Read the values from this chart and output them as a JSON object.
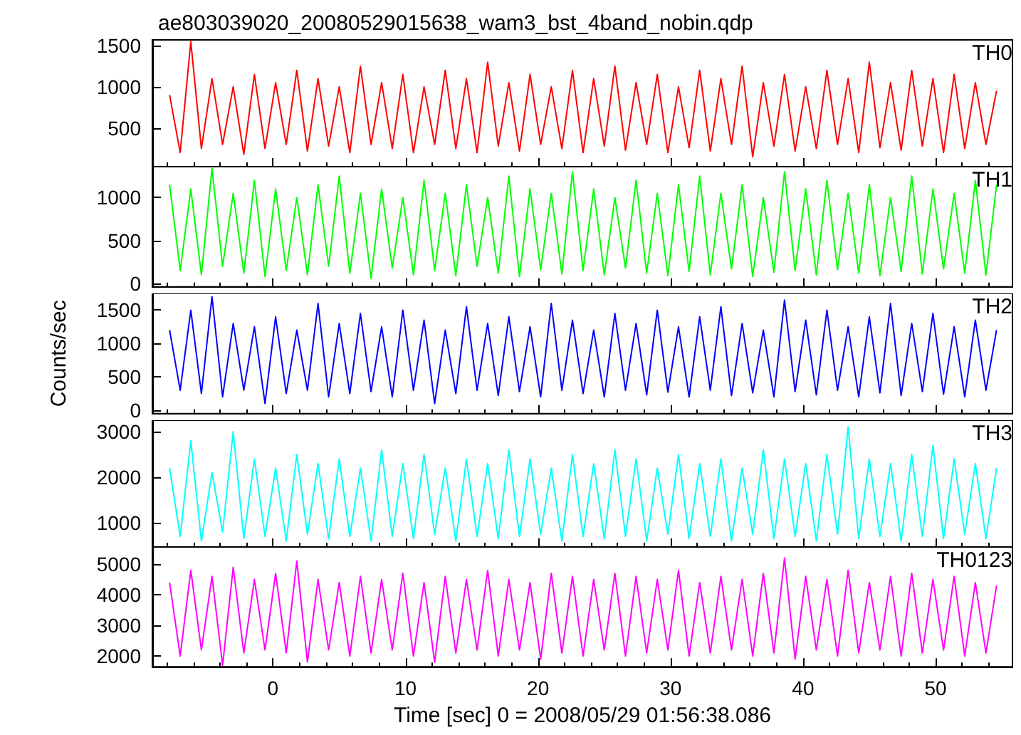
{
  "chart_data": [
    {
      "type": "line",
      "title": "ae803039020_20080529015638_wam3_bst_4band_nobin.qdp",
      "marker": "none",
      "grid": false,
      "legend": "top right",
      "tick_labels": "y",
      "xlim": [
        -9.1,
        55.8
      ],
      "xticks": [
        0,
        10,
        20,
        30,
        40,
        50
      ],
      "ylim": [
        30,
        1570
      ],
      "yticks": [
        500,
        1000,
        1500
      ],
      "x": [
        -7.8,
        -7,
        -6.2,
        -5.4,
        -4.6,
        -3.8,
        -3,
        -2.2,
        -1.4,
        -0.6,
        0.2,
        1,
        1.8,
        2.6,
        3.4,
        4.2,
        5,
        5.8,
        6.6,
        7.4,
        8.2,
        9,
        9.8,
        10.6,
        11.4,
        12.2,
        13,
        13.8,
        14.6,
        15.4,
        16.2,
        17,
        17.8,
        18.6,
        19.4,
        20.2,
        21,
        21.8,
        22.6,
        23.4,
        24.2,
        25,
        25.8,
        26.6,
        27.4,
        28.2,
        29,
        29.8,
        30.6,
        31.4,
        32.2,
        33,
        33.8,
        34.6,
        35.4,
        36.2,
        37,
        37.8,
        38.6,
        39.4,
        40.2,
        41,
        41.8,
        42.6,
        43.4,
        44.2,
        45,
        45.8,
        46.6,
        47.4,
        48.2,
        49,
        49.8,
        50.6,
        51.4,
        52.2,
        53,
        53.8,
        54.6
      ],
      "series": [
        {
          "name": "TH0",
          "color": "#ff0000",
          "values": [
            900,
            200,
            1550,
            250,
            1100,
            300,
            1000,
            180,
            1150,
            250,
            1050,
            300,
            1200,
            220,
            1100,
            280,
            1000,
            200,
            1250,
            300,
            1050,
            250,
            1150,
            200,
            1000,
            300,
            1200,
            250,
            1100,
            200,
            1300,
            280,
            1050,
            220,
            1150,
            300,
            1000,
            250,
            1200,
            200,
            1100,
            280,
            1250,
            230,
            1050,
            300,
            1150,
            200,
            1000,
            260,
            1200,
            220,
            1100,
            300,
            1250,
            150,
            1050,
            280,
            1150,
            220,
            1000,
            250,
            1200,
            300,
            1100,
            200,
            1300,
            260,
            1050,
            230,
            1200,
            280,
            1100,
            200,
            1150,
            250,
            1050,
            300,
            950
          ]
        }
      ]
    },
    {
      "type": "line",
      "marker": "none",
      "grid": false,
      "legend": "top right",
      "tick_labels": "y",
      "xlim": [
        -9.1,
        55.8
      ],
      "xticks": [
        0,
        10,
        20,
        30,
        40,
        50
      ],
      "ylim": [
        -40,
        1360
      ],
      "yticks": [
        0,
        500,
        1000
      ],
      "x": [
        -7.8,
        -7,
        -6.2,
        -5.4,
        -4.6,
        -3.8,
        -3,
        -2.2,
        -1.4,
        -0.6,
        0.2,
        1,
        1.8,
        2.6,
        3.4,
        4.2,
        5,
        5.8,
        6.6,
        7.4,
        8.2,
        9,
        9.8,
        10.6,
        11.4,
        12.2,
        13,
        13.8,
        14.6,
        15.4,
        16.2,
        17,
        17.8,
        18.6,
        19.4,
        20.2,
        21,
        21.8,
        22.6,
        23.4,
        24.2,
        25,
        25.8,
        26.6,
        27.4,
        28.2,
        29,
        29.8,
        30.6,
        31.4,
        32.2,
        33,
        33.8,
        34.6,
        35.4,
        36.2,
        37,
        37.8,
        38.6,
        39.4,
        40.2,
        41,
        41.8,
        42.6,
        43.4,
        44.2,
        45,
        45.8,
        46.6,
        47.4,
        48.2,
        49,
        49.8,
        50.6,
        51.4,
        52.2,
        53,
        53.8,
        54.6
      ],
      "series": [
        {
          "name": "TH1",
          "color": "#00ff00",
          "values": [
            1150,
            150,
            1100,
            100,
            1340,
            200,
            1050,
            120,
            1200,
            80,
            1100,
            150,
            1000,
            100,
            1150,
            200,
            1250,
            120,
            1050,
            60,
            1100,
            180,
            1000,
            100,
            1200,
            150,
            1050,
            90,
            1150,
            200,
            1000,
            120,
            1250,
            80,
            1100,
            160,
            1050,
            110,
            1300,
            150,
            1100,
            100,
            1000,
            180,
            1200,
            120,
            1050,
            90,
            1150,
            140,
            1250,
            100,
            1050,
            170,
            1150,
            80,
            1000,
            130,
            1300,
            150,
            1100,
            100,
            1200,
            160,
            1050,
            120,
            1150,
            90,
            1000,
            140,
            1250,
            110,
            1100,
            170,
            1050,
            120,
            1200,
            100,
            1150
          ]
        }
      ]
    },
    {
      "type": "line",
      "ylabel": "Counts/sec",
      "marker": "none",
      "grid": false,
      "legend": "top right",
      "tick_labels": "y",
      "xlim": [
        -9.1,
        55.8
      ],
      "xticks": [
        0,
        10,
        20,
        30,
        40,
        50
      ],
      "ylim": [
        -50,
        1750
      ],
      "yticks": [
        0,
        500,
        1000,
        1500
      ],
      "x": [
        -7.8,
        -7,
        -6.2,
        -5.4,
        -4.6,
        -3.8,
        -3,
        -2.2,
        -1.4,
        -0.6,
        0.2,
        1,
        1.8,
        2.6,
        3.4,
        4.2,
        5,
        5.8,
        6.6,
        7.4,
        8.2,
        9,
        9.8,
        10.6,
        11.4,
        12.2,
        13,
        13.8,
        14.6,
        15.4,
        16.2,
        17,
        17.8,
        18.6,
        19.4,
        20.2,
        21,
        21.8,
        22.6,
        23.4,
        24.2,
        25,
        25.8,
        26.6,
        27.4,
        28.2,
        29,
        29.8,
        30.6,
        31.4,
        32.2,
        33,
        33.8,
        34.6,
        35.4,
        36.2,
        37,
        37.8,
        38.6,
        39.4,
        40.2,
        41,
        41.8,
        42.6,
        43.4,
        44.2,
        45,
        45.8,
        46.6,
        47.4,
        48.2,
        49,
        49.8,
        50.6,
        51.4,
        52.2,
        53,
        53.8,
        54.6
      ],
      "series": [
        {
          "name": "TH2",
          "color": "#0000ff",
          "values": [
            1200,
            300,
            1500,
            250,
            1700,
            200,
            1300,
            300,
            1250,
            100,
            1400,
            250,
            1200,
            300,
            1600,
            200,
            1300,
            250,
            1450,
            280,
            1250,
            200,
            1500,
            300,
            1350,
            100,
            1200,
            250,
            1550,
            300,
            1300,
            220,
            1400,
            280,
            1250,
            200,
            1600,
            300,
            1350,
            250,
            1200,
            200,
            1450,
            300,
            1300,
            230,
            1500,
            270,
            1250,
            200,
            1400,
            300,
            1550,
            220,
            1300,
            260,
            1200,
            200,
            1650,
            280,
            1350,
            230,
            1500,
            300,
            1250,
            200,
            1400,
            260,
            1600,
            220,
            1300,
            280,
            1450,
            240,
            1250,
            200,
            1350,
            300,
            1200
          ]
        }
      ]
    },
    {
      "type": "line",
      "marker": "none",
      "grid": false,
      "legend": "top right",
      "tick_labels": "y",
      "xlim": [
        -9.1,
        55.8
      ],
      "xticks": [
        0,
        10,
        20,
        30,
        40,
        50
      ],
      "ylim": [
        470,
        3250
      ],
      "yticks": [
        1000,
        2000,
        3000
      ],
      "x": [
        -7.8,
        -7,
        -6.2,
        -5.4,
        -4.6,
        -3.8,
        -3,
        -2.2,
        -1.4,
        -0.6,
        0.2,
        1,
        1.8,
        2.6,
        3.4,
        4.2,
        5,
        5.8,
        6.6,
        7.4,
        8.2,
        9,
        9.8,
        10.6,
        11.4,
        12.2,
        13,
        13.8,
        14.6,
        15.4,
        16.2,
        17,
        17.8,
        18.6,
        19.4,
        20.2,
        21,
        21.8,
        22.6,
        23.4,
        24.2,
        25,
        25.8,
        26.6,
        27.4,
        28.2,
        29,
        29.8,
        30.6,
        31.4,
        32.2,
        33,
        33.8,
        34.6,
        35.4,
        36.2,
        37,
        37.8,
        38.6,
        39.4,
        40.2,
        41,
        41.8,
        42.6,
        43.4,
        44.2,
        45,
        45.8,
        46.6,
        47.4,
        48.2,
        49,
        49.8,
        50.6,
        51.4,
        52.2,
        53,
        53.8,
        54.6
      ],
      "series": [
        {
          "name": "TH3",
          "color": "#00ffff",
          "values": [
            2200,
            700,
            2800,
            600,
            2100,
            800,
            3000,
            650,
            2400,
            700,
            2200,
            600,
            2500,
            750,
            2300,
            650,
            2400,
            700,
            2200,
            600,
            2600,
            700,
            2300,
            650,
            2500,
            750,
            2200,
            600,
            2400,
            700,
            2300,
            650,
            2600,
            700,
            2400,
            750,
            2200,
            600,
            2500,
            700,
            2300,
            650,
            2600,
            700,
            2400,
            600,
            2200,
            750,
            2500,
            650,
            2300,
            700,
            2400,
            600,
            2200,
            750,
            2600,
            650,
            2400,
            700,
            2300,
            600,
            2500,
            750,
            3100,
            650,
            2400,
            700,
            2300,
            600,
            2500,
            700,
            2700,
            650,
            2400,
            750,
            2300,
            650,
            2200
          ]
        }
      ]
    },
    {
      "type": "line",
      "xlabel": "Time [sec] 0 = 2008/05/29 01:56:38.086",
      "marker": "none",
      "grid": false,
      "legend": "top right",
      "xlim": [
        -9.1,
        55.8
      ],
      "xticks": [
        0,
        10,
        20,
        30,
        40,
        50
      ],
      "ylim": [
        1650,
        5560
      ],
      "yticks": [
        2000,
        3000,
        4000,
        5000
      ],
      "x": [
        -7.8,
        -7,
        -6.2,
        -5.4,
        -4.6,
        -3.8,
        -3,
        -2.2,
        -1.4,
        -0.6,
        0.2,
        1,
        1.8,
        2.6,
        3.4,
        4.2,
        5,
        5.8,
        6.6,
        7.4,
        8.2,
        9,
        9.8,
        10.6,
        11.4,
        12.2,
        13,
        13.8,
        14.6,
        15.4,
        16.2,
        17,
        17.8,
        18.6,
        19.4,
        20.2,
        21,
        21.8,
        22.6,
        23.4,
        24.2,
        25,
        25.8,
        26.6,
        27.4,
        28.2,
        29,
        29.8,
        30.6,
        31.4,
        32.2,
        33,
        33.8,
        34.6,
        35.4,
        36.2,
        37,
        37.8,
        38.6,
        39.4,
        40.2,
        41,
        41.8,
        42.6,
        43.4,
        44.2,
        45,
        45.8,
        46.6,
        47.4,
        48.2,
        49,
        49.8,
        50.6,
        51.4,
        52.2,
        53,
        53.8,
        54.6
      ],
      "series": [
        {
          "name": "TH0123",
          "color": "#ff00ff",
          "values": [
            4400,
            2000,
            4800,
            2200,
            4600,
            1700,
            4900,
            2100,
            4500,
            2200,
            4700,
            2100,
            5100,
            1800,
            4500,
            2200,
            4400,
            2000,
            4600,
            2100,
            4500,
            2200,
            4700,
            2000,
            4400,
            1800,
            4600,
            2100,
            4500,
            2200,
            4800,
            2000,
            4500,
            2200,
            4400,
            1900,
            4700,
            2100,
            4600,
            2000,
            4500,
            2200,
            4700,
            2000,
            4600,
            2100,
            4500,
            2200,
            4800,
            2000,
            4400,
            2100,
            4600,
            2200,
            4500,
            2000,
            4700,
            2100,
            5200,
            1900,
            4600,
            2200,
            4500,
            2000,
            4800,
            2100,
            4400,
            2200,
            4600,
            2000,
            4700,
            2100,
            4500,
            2200,
            4600,
            2000,
            4400,
            2100,
            4300
          ]
        }
      ]
    }
  ]
}
